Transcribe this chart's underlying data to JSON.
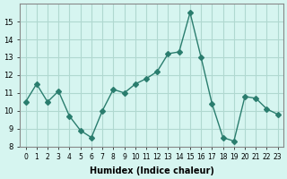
{
  "x": [
    0,
    1,
    2,
    3,
    4,
    5,
    6,
    7,
    8,
    9,
    10,
    11,
    12,
    13,
    14,
    15,
    16,
    17,
    18,
    19,
    20,
    21,
    22,
    23
  ],
  "y": [
    10.5,
    11.5,
    10.5,
    11.1,
    9.7,
    8.9,
    8.5,
    10.0,
    11.2,
    11.0,
    11.5,
    11.8,
    12.2,
    13.2,
    13.3,
    15.5,
    13.0,
    10.4,
    8.5,
    8.3,
    10.8,
    10.7,
    10.1,
    9.8
  ],
  "xlabel": "Humidex (Indice chaleur)",
  "ylabel": "",
  "title": "",
  "line_color": "#2a7d6e",
  "marker": "D",
  "marker_size": 3,
  "bg_color": "#d6f5f0",
  "grid_color": "#b0d8d0",
  "xlim": [
    -0.5,
    23.5
  ],
  "ylim": [
    8,
    16
  ],
  "yticks": [
    8,
    9,
    10,
    11,
    12,
    13,
    14,
    15
  ],
  "xticks": [
    0,
    1,
    2,
    3,
    4,
    5,
    6,
    7,
    8,
    9,
    10,
    11,
    12,
    13,
    14,
    15,
    16,
    17,
    18,
    19,
    20,
    21,
    22,
    23
  ]
}
